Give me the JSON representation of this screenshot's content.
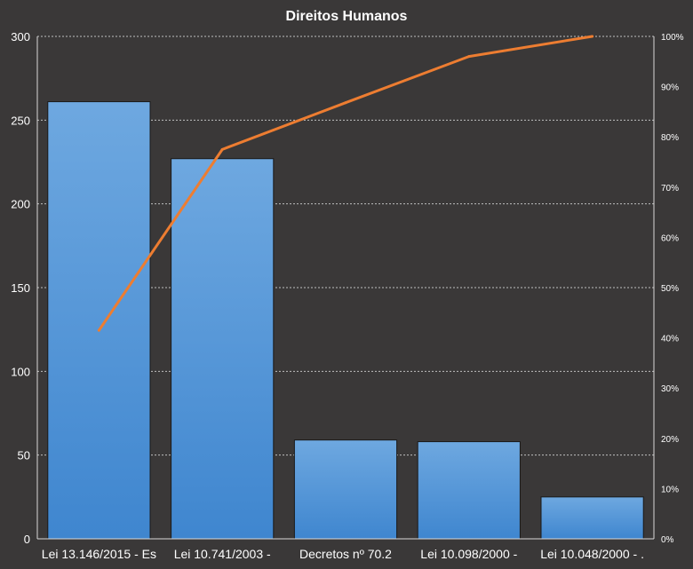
{
  "chart_data": {
    "type": "bar",
    "title": "Direitos  Humanos",
    "categories": [
      "Lei 13.146/2015 - Es",
      "Lei 10.741/2003 -",
      "Decretos nº 70.2",
      "Lei 10.098/2000 -",
      "Lei 10.048/2000 - ."
    ],
    "series": [
      {
        "type": "bar",
        "values": [
          261,
          227,
          59,
          58,
          25
        ],
        "color": "#5b9bd5"
      },
      {
        "type": "line",
        "axis": "right",
        "values": [
          41.5,
          77.5,
          86.8,
          96.0,
          100.0
        ],
        "color": "#ed7d31"
      }
    ],
    "ylim": [
      0,
      300
    ],
    "yticks": [
      0,
      50,
      100,
      150,
      200,
      250,
      300
    ],
    "y2lim": [
      0,
      100
    ],
    "y2ticks": [
      "0%",
      "10%",
      "20%",
      "30%",
      "40%",
      "50%",
      "60%",
      "70%",
      "80%",
      "90%",
      "100%"
    ],
    "grid": true,
    "legend": "none",
    "background": "#3a3838",
    "gridline_color": "#bfbfbf"
  }
}
